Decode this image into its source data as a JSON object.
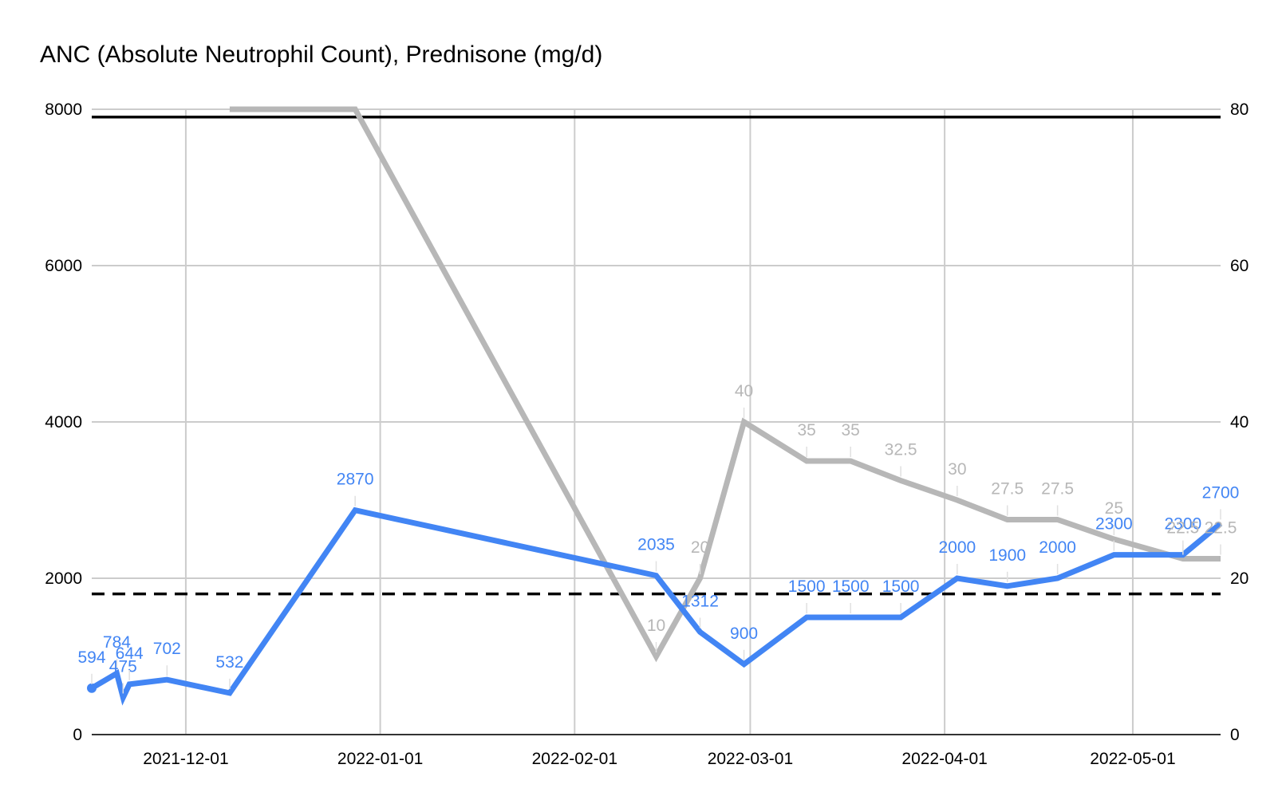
{
  "chart_data": {
    "type": "line",
    "title": "ANC (Absolute Neutrophil Count), Prednisone (mg/d)",
    "xlabel": "",
    "ylabel": "",
    "x_ticks": [
      "2021-12-01",
      "2022-01-01",
      "2022-02-01",
      "2022-03-01",
      "2022-04-01",
      "2022-05-01"
    ],
    "xlim": [
      "2021-11-16",
      "2022-05-15"
    ],
    "ylim_left": [
      0,
      8000
    ],
    "ylim_right": [
      0,
      80
    ],
    "yticks_left": [
      "0",
      "2000",
      "4000",
      "6000",
      "8000"
    ],
    "yticks_right": [
      "0",
      "20",
      "40",
      "60",
      "80"
    ],
    "grid": true,
    "reference_lines": [
      {
        "axis": "left",
        "value": 7900,
        "style": "solid",
        "color": "#000000"
      },
      {
        "axis": "left",
        "value": 1800,
        "style": "dashed",
        "color": "#000000"
      }
    ],
    "series": [
      {
        "axis": "left",
        "color": "#4285f4",
        "points": [
          {
            "x": "2021-11-16",
            "y": 594,
            "label": "594"
          },
          {
            "x": "2021-11-20",
            "y": 784,
            "label": "784"
          },
          {
            "x": "2021-11-21",
            "y": 475,
            "label": "475"
          },
          {
            "x": "2021-11-22",
            "y": 644,
            "label": "644"
          },
          {
            "x": "2021-11-28",
            "y": 702,
            "label": "702"
          },
          {
            "x": "2021-12-08",
            "y": 532,
            "label": "532"
          },
          {
            "x": "2021-12-28",
            "y": 2870,
            "label": "2870"
          },
          {
            "x": "2022-02-14",
            "y": 2035,
            "label": "2035"
          },
          {
            "x": "2022-02-21",
            "y": 1312,
            "label": "1312"
          },
          {
            "x": "2022-02-28",
            "y": 900,
            "label": "900"
          },
          {
            "x": "2022-03-10",
            "y": 1500,
            "label": "1500"
          },
          {
            "x": "2022-03-17",
            "y": 1500,
            "label": "1500"
          },
          {
            "x": "2022-03-25",
            "y": 1500,
            "label": "1500"
          },
          {
            "x": "2022-04-03",
            "y": 2000,
            "label": "2000"
          },
          {
            "x": "2022-04-11",
            "y": 1900,
            "label": "1900"
          },
          {
            "x": "2022-04-19",
            "y": 2000,
            "label": "2000"
          },
          {
            "x": "2022-04-28",
            "y": 2300,
            "label": "2300"
          },
          {
            "x": "2022-05-09",
            "y": 2300,
            "label": "2300"
          },
          {
            "x": "2022-05-15",
            "y": 2700,
            "label": "2700"
          }
        ]
      },
      {
        "axis": "right",
        "color": "#b7b7b7",
        "points": [
          {
            "x": "2021-12-08",
            "y": 80,
            "label": ""
          },
          {
            "x": "2021-12-28",
            "y": 80,
            "label": ""
          },
          {
            "x": "2022-02-14",
            "y": 10,
            "label": "10"
          },
          {
            "x": "2022-02-21",
            "y": 20,
            "label": "20"
          },
          {
            "x": "2022-02-28",
            "y": 40,
            "label": "40"
          },
          {
            "x": "2022-03-10",
            "y": 35,
            "label": "35"
          },
          {
            "x": "2022-03-17",
            "y": 35,
            "label": "35"
          },
          {
            "x": "2022-03-25",
            "y": 32.5,
            "label": "32.5"
          },
          {
            "x": "2022-04-03",
            "y": 30,
            "label": "30"
          },
          {
            "x": "2022-04-11",
            "y": 27.5,
            "label": "27.5"
          },
          {
            "x": "2022-04-19",
            "y": 27.5,
            "label": "27.5"
          },
          {
            "x": "2022-04-28",
            "y": 25,
            "label": "25"
          },
          {
            "x": "2022-05-09",
            "y": 22.5,
            "label": "22.5"
          },
          {
            "x": "2022-05-15",
            "y": 22.5,
            "label": "22.5"
          }
        ]
      }
    ]
  }
}
